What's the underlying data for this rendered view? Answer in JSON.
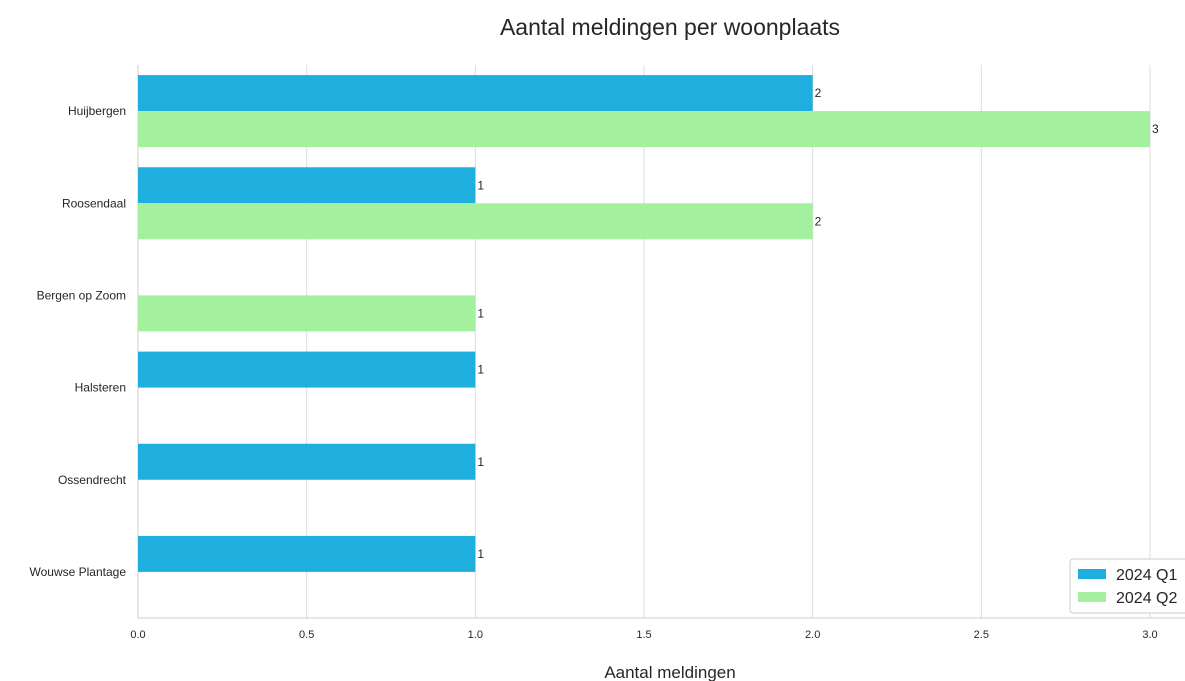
{
  "chart_data": {
    "type": "bar",
    "orientation": "horizontal",
    "title": "Aantal meldingen per woonplaats",
    "xlabel": "Aantal meldingen",
    "ylabel": "",
    "xlim": [
      0,
      3.0
    ],
    "xticks": [
      "0.0",
      "0.5",
      "1.0",
      "1.5",
      "2.0",
      "2.5",
      "3.0"
    ],
    "grid": "vertical",
    "legend_position": "bottom-right",
    "categories": [
      "Huijbergen",
      "Roosendaal",
      "Bergen op Zoom",
      "Halsteren",
      "Ossendrecht",
      "Wouwse Plantage"
    ],
    "series": [
      {
        "name": "2024 Q1",
        "color": "#1fafde",
        "values": [
          2,
          1,
          0,
          1,
          1,
          1
        ]
      },
      {
        "name": "2024 Q2",
        "color": "#a3f09f",
        "values": [
          3,
          2,
          1,
          0,
          0,
          0
        ]
      }
    ]
  }
}
